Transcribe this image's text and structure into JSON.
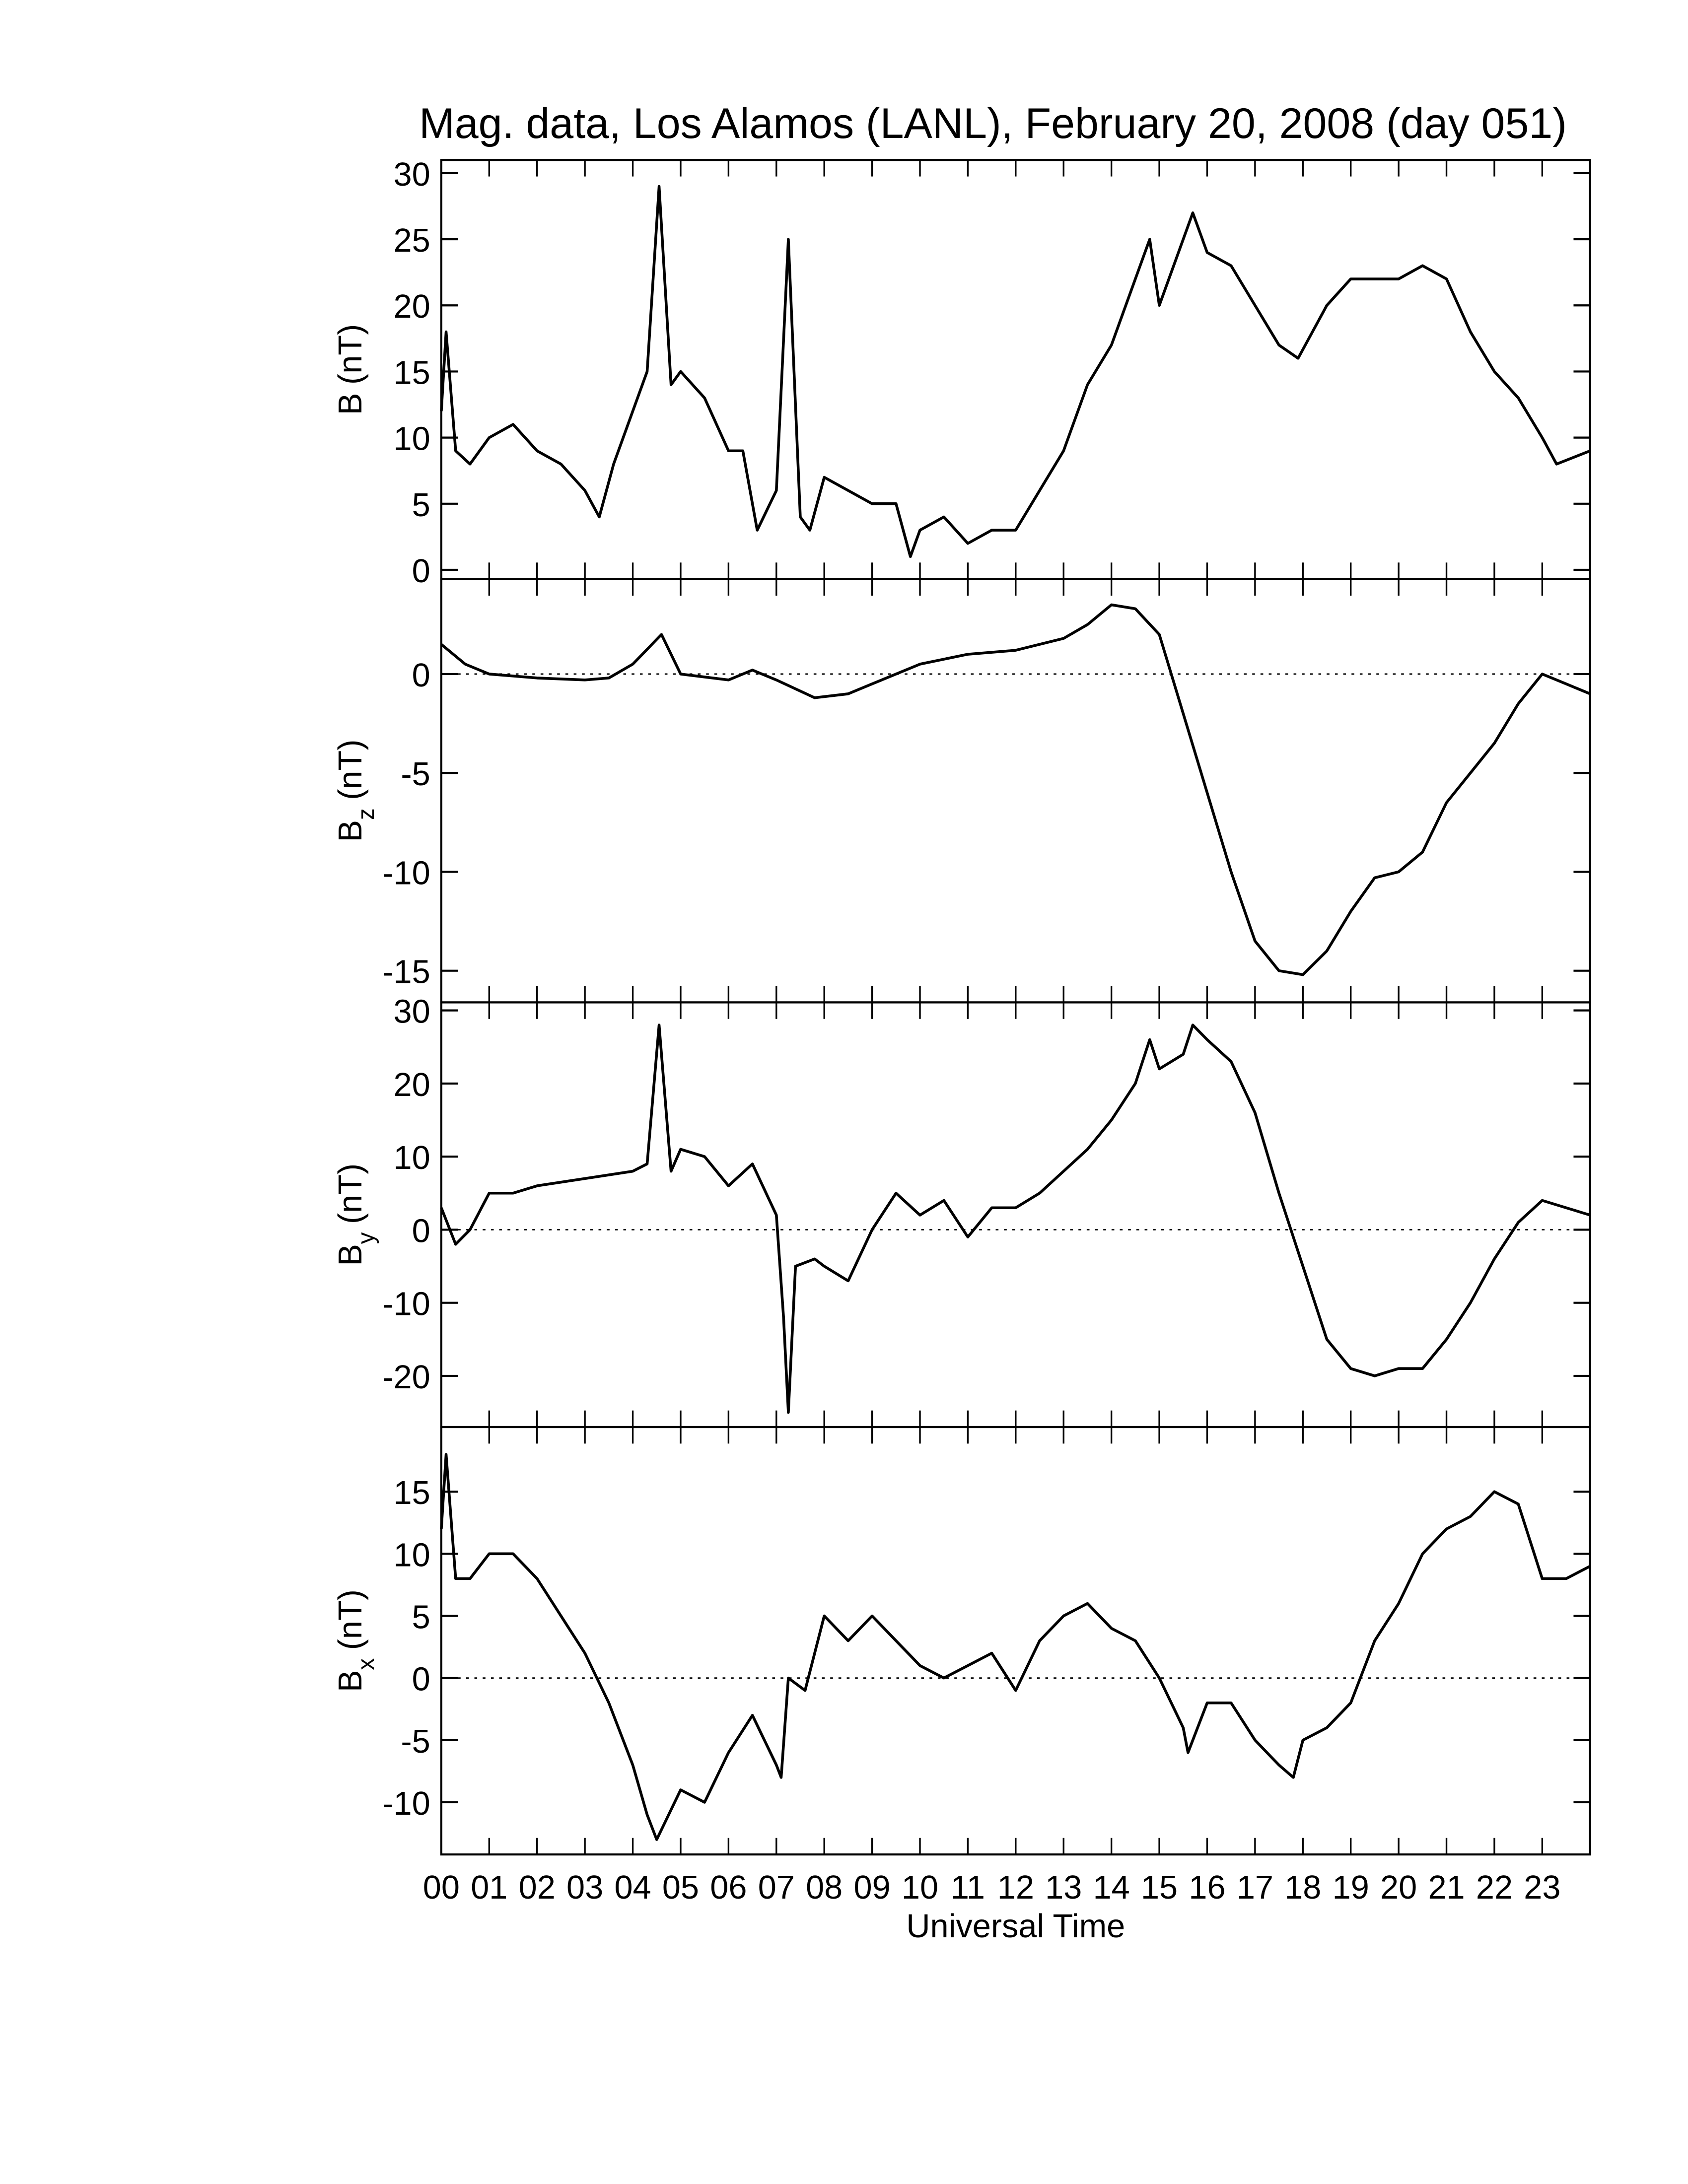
{
  "chart_data": [
    {
      "type": "line",
      "title": "Mag. data, Los Alamos (LANL), February 20, 2008 (day 051)",
      "ylabel": [
        "B",
        "(nT)"
      ],
      "color": "#000000",
      "xlim": [
        0,
        24
      ],
      "ylim": [
        -0.7,
        31
      ],
      "yticks": [
        0,
        5,
        10,
        15,
        20,
        25,
        30
      ],
      "zero_line": false,
      "x": [
        0,
        0.1,
        0.3,
        0.6,
        1,
        1.5,
        2,
        2.5,
        3,
        3.3,
        3.6,
        4,
        4.3,
        4.55,
        4.8,
        5,
        5.5,
        6,
        6.3,
        6.6,
        7,
        7.25,
        7.5,
        7.7,
        8,
        8.5,
        9,
        9.5,
        9.8,
        10,
        10.5,
        11,
        11.5,
        12,
        12.5,
        13,
        13.5,
        14,
        14.5,
        14.8,
        15,
        15.5,
        15.7,
        16,
        16.5,
        17,
        17.5,
        17.9,
        18.5,
        19,
        19.5,
        20,
        20.5,
        21,
        21.5,
        22,
        22.5,
        23,
        23.3,
        24
      ],
      "values": [
        12,
        18,
        9,
        8,
        10,
        11,
        9,
        8,
        6,
        4,
        8,
        12,
        15,
        29,
        14,
        15,
        13,
        9,
        9,
        3,
        6,
        25,
        4,
        3,
        7,
        6,
        5,
        5,
        1,
        3,
        4,
        2,
        3,
        3,
        6,
        9,
        14,
        17,
        22,
        25,
        20,
        25,
        27,
        24,
        23,
        20,
        17,
        16,
        20,
        22,
        22,
        22,
        23,
        22,
        18,
        15,
        13,
        10,
        8,
        9
      ]
    },
    {
      "type": "line",
      "ylabel": [
        "B",
        "z",
        "(nT)"
      ],
      "color": "#000000",
      "xlim": [
        0,
        24
      ],
      "ylim": [
        -16.6,
        4.8
      ],
      "yticks": [
        -15,
        -10,
        -5,
        0
      ],
      "zero_line": true,
      "x": [
        0,
        0.5,
        1,
        2,
        3,
        3.5,
        4,
        4.6,
        5,
        6,
        6.5,
        7,
        7.8,
        8.5,
        9,
        10,
        11,
        12,
        13,
        13.5,
        14,
        14.5,
        15,
        15.5,
        16,
        16.5,
        17,
        17.5,
        18,
        18.5,
        19,
        19.5,
        20,
        20.5,
        21,
        21.5,
        22,
        22.5,
        23,
        23.5,
        24
      ],
      "values": [
        1.5,
        0.5,
        0,
        -0.2,
        -0.3,
        -0.2,
        0.5,
        2,
        0,
        -0.3,
        0.2,
        -0.3,
        -1.2,
        -1,
        -0.5,
        0.5,
        1,
        1.2,
        1.8,
        2.5,
        3.5,
        3.3,
        2,
        -2,
        -6,
        -10,
        -13.5,
        -15,
        -15.2,
        -14,
        -12,
        -10.3,
        -10,
        -9,
        -6.5,
        -5,
        -3.5,
        -1.5,
        0,
        -0.5,
        -1
      ]
    },
    {
      "type": "line",
      "ylabel": [
        "B",
        "y",
        "(nT)"
      ],
      "color": "#000000",
      "xlim": [
        0,
        24
      ],
      "ylim": [
        -27,
        31.1
      ],
      "yticks": [
        -20,
        -10,
        0,
        10,
        20,
        30
      ],
      "zero_line": true,
      "x": [
        0,
        0.3,
        0.6,
        1,
        1.5,
        2,
        3,
        4,
        4.3,
        4.55,
        4.8,
        5,
        5.5,
        6,
        6.5,
        7,
        7.15,
        7.25,
        7.4,
        7.8,
        8,
        8.5,
        9,
        9.5,
        10,
        10.5,
        11,
        11.5,
        12,
        12.5,
        13,
        13.5,
        14,
        14.5,
        14.8,
        15,
        15.5,
        15.7,
        16,
        16.5,
        17,
        17.5,
        18,
        18.5,
        19,
        19.5,
        20,
        20.5,
        21,
        21.5,
        22,
        22.5,
        23,
        23.5,
        24
      ],
      "values": [
        3,
        -2,
        0,
        5,
        5,
        6,
        7,
        8,
        9,
        28,
        8,
        11,
        10,
        6,
        9,
        2,
        -12,
        -25,
        -5,
        -4,
        -5,
        -7,
        0,
        5,
        2,
        4,
        -1,
        3,
        3,
        5,
        8,
        11,
        15,
        20,
        26,
        22,
        24,
        28,
        26,
        23,
        16,
        5,
        -5,
        -15,
        -19,
        -20,
        -19,
        -19,
        -15,
        -10,
        -4,
        1,
        4,
        3,
        2
      ]
    },
    {
      "type": "line",
      "ylabel": [
        "B",
        "x",
        "(nT)"
      ],
      "color": "#000000",
      "xlabel": "Universal Time",
      "xlim": [
        0,
        24
      ],
      "ylim": [
        -14.2,
        20.2
      ],
      "yticks": [
        -10,
        -5,
        0,
        5,
        10,
        15
      ],
      "zero_line": true,
      "xticks": [
        {
          "value": 0,
          "label": "00"
        },
        {
          "value": 1,
          "label": "01"
        },
        {
          "value": 2,
          "label": "02"
        },
        {
          "value": 3,
          "label": "03"
        },
        {
          "value": 4,
          "label": "04"
        },
        {
          "value": 5,
          "label": "05"
        },
        {
          "value": 6,
          "label": "06"
        },
        {
          "value": 7,
          "label": "07"
        },
        {
          "value": 8,
          "label": "08"
        },
        {
          "value": 9,
          "label": "09"
        },
        {
          "value": 10,
          "label": "10"
        },
        {
          "value": 11,
          "label": "11"
        },
        {
          "value": 12,
          "label": "12"
        },
        {
          "value": 13,
          "label": "13"
        },
        {
          "value": 14,
          "label": "14"
        },
        {
          "value": 15,
          "label": "15"
        },
        {
          "value": 16,
          "label": "16"
        },
        {
          "value": 17,
          "label": "17"
        },
        {
          "value": 18,
          "label": "18"
        },
        {
          "value": 19,
          "label": "19"
        },
        {
          "value": 20,
          "label": "20"
        },
        {
          "value": 21,
          "label": "21"
        },
        {
          "value": 22,
          "label": "22"
        },
        {
          "value": 23,
          "label": "23"
        }
      ],
      "x": [
        0,
        0.1,
        0.3,
        0.6,
        1,
        1.5,
        2,
        2.5,
        3,
        3.5,
        4,
        4.3,
        4.5,
        5,
        5.5,
        6,
        6.5,
        7,
        7.1,
        7.25,
        7.6,
        8,
        8.5,
        9,
        9.5,
        10,
        10.5,
        11,
        11.5,
        12,
        12.5,
        13,
        13.5,
        14,
        14.5,
        15,
        15.5,
        15.6,
        16,
        16.5,
        17,
        17.5,
        17.8,
        18,
        18.5,
        19,
        19.5,
        20,
        20.5,
        21,
        21.5,
        22,
        22.5,
        23,
        23.5,
        24
      ],
      "values": [
        12,
        18,
        8,
        8,
        10,
        10,
        8,
        5,
        2,
        -2,
        -7,
        -11,
        -13,
        -9,
        -10,
        -6,
        -3,
        -7,
        -8,
        0,
        -1,
        5,
        3,
        5,
        3,
        1,
        0,
        1,
        2,
        -1,
        3,
        5,
        6,
        4,
        3,
        0,
        -4,
        -6,
        -2,
        -2,
        -5,
        -7,
        -8,
        -5,
        -4,
        -2,
        3,
        6,
        10,
        12,
        13,
        15,
        14,
        8,
        8,
        9
      ]
    }
  ]
}
